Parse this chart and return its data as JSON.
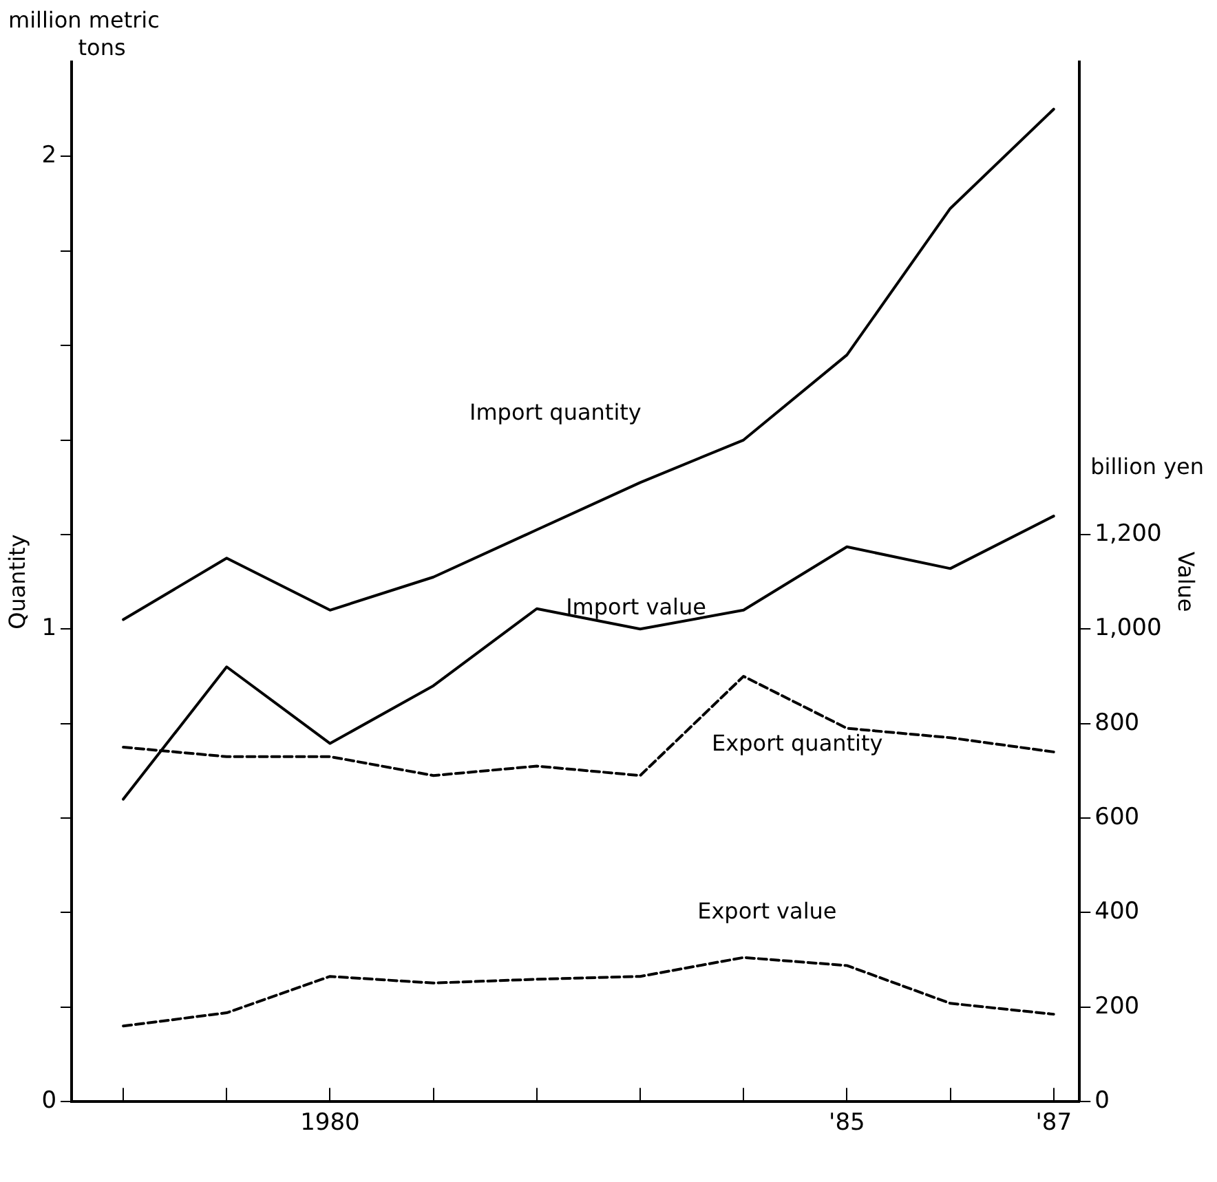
{
  "chart_data": {
    "type": "line",
    "ylabel": "Quantity",
    "y2label": "Value",
    "annotations": [
      "million metric tons",
      "billion yen"
    ],
    "x": [
      1978,
      1979,
      1980,
      1981,
      1982,
      1983,
      1984,
      1985,
      1986,
      1987
    ],
    "xlim": [
      1977.5,
      1987.25
    ],
    "xticks": [
      {
        "value": 1978,
        "label": null
      },
      {
        "value": 1979,
        "label": null
      },
      {
        "value": 1980,
        "label": "1980"
      },
      {
        "value": 1981,
        "label": null
      },
      {
        "value": 1982,
        "label": null
      },
      {
        "value": 1983,
        "label": null
      },
      {
        "value": 1984,
        "label": null
      },
      {
        "value": 1985,
        "label": "'85"
      },
      {
        "value": 1986,
        "label": null
      },
      {
        "value": 1987,
        "label": "'87"
      }
    ],
    "ylim": [
      0,
      2.2
    ],
    "yticks": [
      0,
      {
        "value": 0.2,
        "label": null
      },
      {
        "value": 0.4,
        "label": null
      },
      {
        "value": 0.6,
        "label": null
      },
      {
        "value": 0.8,
        "label": null
      },
      1,
      {
        "value": 1.2,
        "label": null
      },
      {
        "value": 1.4,
        "label": null
      },
      {
        "value": 1.6,
        "label": null
      },
      {
        "value": 1.8,
        "label": null
      },
      2
    ],
    "y2lim": [
      0,
      2200
    ],
    "y2ticks": [
      0,
      {
        "value": 200,
        "label": "200"
      },
      {
        "value": 400,
        "label": "400"
      },
      {
        "value": 600,
        "label": "600"
      },
      {
        "value": 800,
        "label": "800"
      },
      {
        "value": 1000,
        "label": "1,000"
      },
      {
        "value": 1200,
        "label": "1,200"
      }
    ],
    "grid": false,
    "legend": false,
    "marker": "none",
    "series": [
      {
        "name": "Import quantity",
        "color": "#000000",
        "line_style": "solid",
        "values": [
          1.02,
          1.15,
          1.04,
          1.11,
          1.21,
          1.31,
          1.4,
          1.58,
          1.89,
          2.1
        ]
      },
      {
        "name": "Import value",
        "color": "#000000",
        "line_style": "solid",
        "axis": "y2",
        "values": [
          640,
          920,
          758,
          880,
          1043,
          1000,
          1040,
          1174,
          1128,
          1239
        ]
      },
      {
        "name": "Export quantity",
        "color": "#000000",
        "line_style": "dashed",
        "values": [
          0.75,
          0.73,
          0.73,
          0.69,
          0.71,
          0.69,
          0.9,
          0.79,
          0.77,
          0.74
        ]
      },
      {
        "name": "Export value",
        "color": "#000000",
        "line_style": "dashed",
        "axis": "y2",
        "values": [
          160,
          188,
          265,
          251,
          259,
          265,
          305,
          288,
          208,
          185
        ]
      }
    ]
  }
}
